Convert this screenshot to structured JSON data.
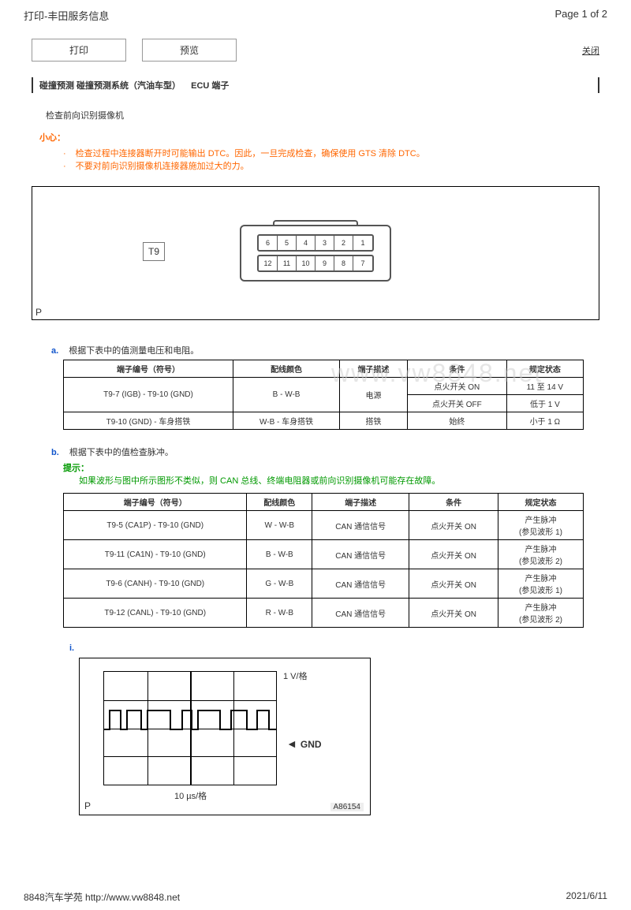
{
  "page": {
    "header_title": "打印-丰田服务信息",
    "page_num": "Page 1 of 2",
    "footer_left": "8848汽车学苑  http://www.vw8848.net",
    "footer_right": "2021/6/11",
    "watermark": "www.vw8848.net"
  },
  "actions": {
    "print": "打印",
    "preview": "预览",
    "close": "关闭"
  },
  "breadcrumb": {
    "path": "碰撞预测  碰撞预测系统（汽油车型）",
    "ecu": "ECU 端子"
  },
  "section": {
    "title": "检查前向识别摄像机"
  },
  "caution": {
    "label": "小心：",
    "items": [
      "检查过程中连接器断开时可能输出 DTC。因此，一旦完成检查，确保使用 GTS 清除 DTC。",
      "不要对前向识别摄像机连接器施加过大的力。"
    ]
  },
  "connector": {
    "label": "T9",
    "row1": [
      "6",
      "5",
      "4",
      "3",
      "2",
      "1"
    ],
    "row2": [
      "12",
      "11",
      "10",
      "9",
      "8",
      "7"
    ],
    "p": "P"
  },
  "step_a": {
    "marker": "a.",
    "text": "根据下表中的值测量电压和电阻。",
    "columns": [
      "端子编号（符号）",
      "配线颜色",
      "端子描述",
      "条件",
      "规定状态"
    ],
    "rows": [
      [
        "T9-7 (IGB) - T9-10 (GND)",
        "B - W-B",
        "电源",
        "点火开关 ON",
        "11 至 14 V"
      ],
      [
        "",
        "",
        "",
        "点火开关 OFF",
        "低于 1 V"
      ],
      [
        "T9-10 (GND) - 车身搭铁",
        "W-B - 车身搭铁",
        "搭铁",
        "始终",
        "小于 1 Ω"
      ]
    ]
  },
  "step_b": {
    "marker": "b.",
    "text": "根据下表中的值检查脉冲。",
    "hint_label": "提示：",
    "hint_text": "如果波形与图中所示图形不类似，则 CAN 总线、终端电阻器或前向识别摄像机可能存在故障。",
    "columns": [
      "端子编号（符号）",
      "配线颜色",
      "端子描述",
      "条件",
      "规定状态"
    ],
    "rows": [
      [
        "T9-5 (CA1P) - T9-10 (GND)",
        "W - W-B",
        "CAN 通信信号",
        "点火开关 ON",
        "产生脉冲\n(参见波形 1)"
      ],
      [
        "T9-11 (CA1N) - T9-10 (GND)",
        "B - W-B",
        "CAN 通信信号",
        "点火开关 ON",
        "产生脉冲\n(参见波形 2)"
      ],
      [
        "T9-6 (CANH) - T9-10 (GND)",
        "G - W-B",
        "CAN 通信信号",
        "点火开关 ON",
        "产生脉冲\n(参见波形 1)"
      ],
      [
        "T9-12 (CANL) - T9-10 (GND)",
        "R - W-B",
        "CAN 通信信号",
        "点火开关 ON",
        "产生脉冲\n(参见波形 2)"
      ]
    ]
  },
  "waveform": {
    "marker": "i.",
    "v_label": "1 V/格",
    "gnd": "GND",
    "x_label": "10 µs/格",
    "p": "P",
    "id": "A86154",
    "grid": {
      "cols": 4,
      "rows": 4
    }
  },
  "colors": {
    "caution": "#ff6600",
    "hint": "#009900",
    "step": "#1155cc",
    "border": "#000000",
    "watermark": "#cccccc"
  }
}
